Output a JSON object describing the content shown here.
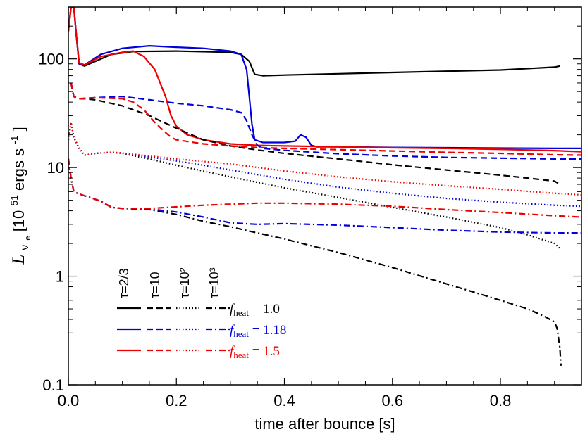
{
  "chart_data": {
    "type": "line",
    "xlabel": "time after bounce [s]",
    "ylabel": {
      "prefix": "L",
      "subscript": "ν",
      "subsub": "e",
      "unit_open": " [10",
      "unit_exp": "51",
      "unit_mid": " ergs s",
      "unit_exp2": "-1",
      "unit_close": "]"
    },
    "xlim": [
      0.0,
      0.95
    ],
    "ylim": [
      0.1,
      300
    ],
    "yscale": "log",
    "xticks": [
      {
        "v": 0.0,
        "label": "0.0"
      },
      {
        "v": 0.2,
        "label": "0.2"
      },
      {
        "v": 0.4,
        "label": "0.4"
      },
      {
        "v": 0.6,
        "label": "0.6"
      },
      {
        "v": 0.8,
        "label": "0.8"
      }
    ],
    "yticks": [
      {
        "v": 0.1,
        "label": "0.1"
      },
      {
        "v": 1,
        "label": "1"
      },
      {
        "v": 10,
        "label": "10"
      },
      {
        "v": 100,
        "label": "100"
      }
    ],
    "colors": {
      "f1.0": "#000000",
      "f1.18": "#0000dd",
      "f1.5": "#ee0000"
    },
    "legend": {
      "placement": "lower-left",
      "tau_labels": [
        "τ=2/3",
        "τ=10",
        "τ=10²",
        "τ=10³"
      ],
      "rows": [
        {
          "label_f": "f",
          "label_sub": "heat",
          "label_val": " = 1.0",
          "color_key": "f1.0"
        },
        {
          "label_f": "f",
          "label_sub": "heat",
          "label_val": " = 1.18",
          "color_key": "f1.18"
        },
        {
          "label_f": "f",
          "label_sub": "heat",
          "label_val": " = 1.5",
          "color_key": "f1.5"
        }
      ]
    },
    "series": [
      {
        "fheat": "1.0",
        "tau": "2/3",
        "color_key": "f1.0",
        "dash": "solid",
        "x": [
          0.0,
          0.005,
          0.01,
          0.015,
          0.02,
          0.03,
          0.05,
          0.08,
          0.12,
          0.2,
          0.3,
          0.32,
          0.335,
          0.345,
          0.36,
          0.4,
          0.5,
          0.6,
          0.7,
          0.8,
          0.9,
          0.91
        ],
        "y": [
          180,
          300,
          300,
          160,
          90,
          86,
          95,
          110,
          117,
          118,
          115,
          110,
          95,
          72,
          70,
          71,
          73,
          75,
          77,
          79,
          84,
          86
        ]
      },
      {
        "fheat": "1.18",
        "tau": "2/3",
        "color_key": "f1.18",
        "dash": "solid",
        "x": [
          0.0,
          0.005,
          0.01,
          0.015,
          0.02,
          0.03,
          0.06,
          0.1,
          0.15,
          0.2,
          0.25,
          0.3,
          0.32,
          0.33,
          0.335,
          0.34,
          0.345,
          0.36,
          0.4,
          0.42,
          0.43,
          0.44,
          0.45,
          0.46,
          0.5,
          0.6,
          0.7,
          0.8,
          0.9,
          0.95
        ],
        "y": [
          180,
          300,
          300,
          160,
          90,
          88,
          110,
          125,
          132,
          128,
          125,
          118,
          110,
          80,
          45,
          25,
          18,
          17,
          17,
          17.5,
          20,
          19,
          16,
          15.5,
          15.5,
          15.3,
          15.2,
          15.1,
          15.0,
          15.0
        ]
      },
      {
        "fheat": "1.5",
        "tau": "2/3",
        "color_key": "f1.5",
        "dash": "solid",
        "x": [
          0.0,
          0.005,
          0.01,
          0.015,
          0.02,
          0.03,
          0.06,
          0.1,
          0.12,
          0.14,
          0.16,
          0.18,
          0.19,
          0.2,
          0.22,
          0.25,
          0.3,
          0.35,
          0.4,
          0.5,
          0.6,
          0.7,
          0.8,
          0.9,
          0.95
        ],
        "y": [
          180,
          300,
          300,
          160,
          92,
          88,
          105,
          115,
          118,
          105,
          80,
          45,
          30,
          24,
          20,
          18,
          16.5,
          16.0,
          15.8,
          15.5,
          15.2,
          15.0,
          14.7,
          14.3,
          14.0
        ]
      },
      {
        "fheat": "1.0",
        "tau": "10",
        "color_key": "f1.0",
        "dash": "dashed",
        "x": [
          0.005,
          0.01,
          0.02,
          0.03,
          0.05,
          0.1,
          0.15,
          0.2,
          0.25,
          0.3,
          0.35,
          0.4,
          0.5,
          0.6,
          0.7,
          0.8,
          0.85,
          0.9,
          0.91
        ],
        "y": [
          60,
          45,
          43,
          43,
          42,
          37,
          30,
          23,
          18,
          15.8,
          14.5,
          13.5,
          12,
          10.6,
          9.5,
          8.5,
          8.0,
          7.5,
          7.0
        ]
      },
      {
        "fheat": "1.18",
        "tau": "10",
        "color_key": "f1.18",
        "dash": "dashed",
        "x": [
          0.005,
          0.01,
          0.02,
          0.05,
          0.1,
          0.15,
          0.2,
          0.25,
          0.3,
          0.32,
          0.33,
          0.34,
          0.35,
          0.36,
          0.4,
          0.5,
          0.6,
          0.7,
          0.8,
          0.9,
          0.95
        ],
        "y": [
          60,
          45,
          43,
          44,
          45,
          42,
          39,
          37,
          34,
          32,
          27,
          20,
          16,
          15,
          14.4,
          13.4,
          12.8,
          12.4,
          12.2,
          12.0,
          12.0
        ]
      },
      {
        "fheat": "1.5",
        "tau": "10",
        "color_key": "f1.5",
        "dash": "dashed",
        "x": [
          0.005,
          0.01,
          0.02,
          0.05,
          0.1,
          0.12,
          0.14,
          0.16,
          0.18,
          0.19,
          0.2,
          0.25,
          0.3,
          0.35,
          0.4,
          0.5,
          0.6,
          0.7,
          0.8,
          0.9,
          0.95
        ],
        "y": [
          60,
          45,
          43,
          44,
          43,
          40,
          34,
          26,
          21,
          19,
          18,
          16.5,
          15.8,
          15.3,
          15.0,
          14.6,
          14.2,
          13.8,
          13.5,
          13.1,
          13.0
        ]
      },
      {
        "fheat": "1.0",
        "tau": "10²",
        "color_key": "f1.0",
        "dash": "dotted",
        "x": [
          0.0,
          0.005,
          0.01,
          0.02,
          0.03,
          0.05,
          0.08,
          0.1,
          0.15,
          0.2,
          0.3,
          0.4,
          0.5,
          0.6,
          0.7,
          0.8,
          0.85,
          0.9,
          0.91
        ],
        "y": [
          18,
          26,
          19,
          15,
          13,
          13.5,
          13.8,
          13.5,
          12,
          10.5,
          8.2,
          6.5,
          5.3,
          4.3,
          3.5,
          2.8,
          2.4,
          2.0,
          1.8
        ]
      },
      {
        "fheat": "1.18",
        "tau": "10²",
        "color_key": "f1.18",
        "dash": "dotted",
        "x": [
          0.0,
          0.005,
          0.01,
          0.02,
          0.03,
          0.05,
          0.08,
          0.1,
          0.15,
          0.2,
          0.25,
          0.3,
          0.4,
          0.5,
          0.6,
          0.7,
          0.8,
          0.9,
          0.95
        ],
        "y": [
          18,
          26,
          19,
          15,
          13,
          13.5,
          13.8,
          13.6,
          12.5,
          11.5,
          10.5,
          9.5,
          7.8,
          6.6,
          5.8,
          5.2,
          4.8,
          4.5,
          4.4
        ]
      },
      {
        "fheat": "1.5",
        "tau": "10²",
        "color_key": "f1.5",
        "dash": "dotted",
        "x": [
          0.0,
          0.005,
          0.01,
          0.02,
          0.03,
          0.05,
          0.08,
          0.1,
          0.15,
          0.2,
          0.3,
          0.4,
          0.5,
          0.6,
          0.7,
          0.8,
          0.9,
          0.95
        ],
        "y": [
          18,
          26,
          19,
          15,
          13,
          13.5,
          13.8,
          13.6,
          12.8,
          12.0,
          10.8,
          9.3,
          8.2,
          7.4,
          6.8,
          6.3,
          5.8,
          5.6
        ]
      },
      {
        "fheat": "1.0",
        "tau": "10³",
        "color_key": "f1.0",
        "dash": "dashdot",
        "x": [
          0.0,
          0.005,
          0.01,
          0.02,
          0.04,
          0.06,
          0.08,
          0.1,
          0.15,
          0.2,
          0.25,
          0.3,
          0.35,
          0.4,
          0.5,
          0.6,
          0.7,
          0.8,
          0.85,
          0.88,
          0.9,
          0.905,
          0.91,
          0.912
        ],
        "y": [
          12,
          8,
          6,
          5.7,
          5.3,
          4.9,
          4.3,
          4.2,
          4.1,
          3.7,
          3.2,
          2.85,
          2.5,
          2.2,
          1.65,
          1.2,
          0.85,
          0.6,
          0.5,
          0.43,
          0.38,
          0.33,
          0.22,
          0.15
        ]
      },
      {
        "fheat": "1.18",
        "tau": "10³",
        "color_key": "f1.18",
        "dash": "dashdot",
        "x": [
          0.0,
          0.005,
          0.01,
          0.02,
          0.04,
          0.06,
          0.08,
          0.1,
          0.15,
          0.2,
          0.25,
          0.3,
          0.35,
          0.4,
          0.5,
          0.6,
          0.7,
          0.8,
          0.9,
          0.95
        ],
        "y": [
          12,
          8,
          6,
          5.7,
          5.3,
          4.9,
          4.3,
          4.2,
          4.15,
          3.9,
          3.5,
          3.1,
          3.0,
          3.05,
          2.95,
          2.8,
          2.65,
          2.55,
          2.5,
          2.5
        ]
      },
      {
        "fheat": "1.5",
        "tau": "10³",
        "color_key": "f1.5",
        "dash": "dashdot",
        "x": [
          0.0,
          0.005,
          0.01,
          0.02,
          0.04,
          0.06,
          0.08,
          0.1,
          0.15,
          0.2,
          0.25,
          0.3,
          0.35,
          0.4,
          0.45,
          0.5,
          0.6,
          0.7,
          0.8,
          0.9,
          0.95
        ],
        "y": [
          12,
          8,
          6,
          5.7,
          5.3,
          4.9,
          4.3,
          4.2,
          4.2,
          4.35,
          4.5,
          4.6,
          4.7,
          4.7,
          4.65,
          4.6,
          4.4,
          4.1,
          3.85,
          3.6,
          3.5
        ]
      }
    ]
  }
}
